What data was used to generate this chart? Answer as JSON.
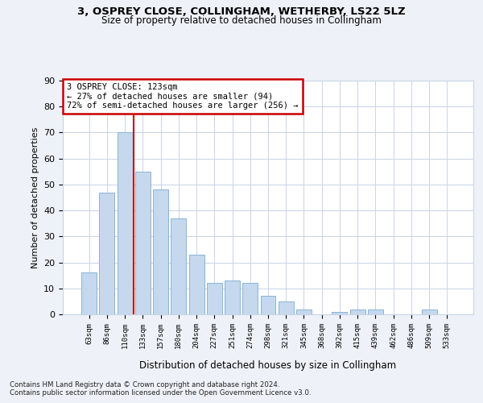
{
  "title1": "3, OSPREY CLOSE, COLLINGHAM, WETHERBY, LS22 5LZ",
  "title2": "Size of property relative to detached houses in Collingham",
  "xlabel": "Distribution of detached houses by size in Collingham",
  "ylabel": "Number of detached properties",
  "categories": [
    "63sqm",
    "86sqm",
    "110sqm",
    "133sqm",
    "157sqm",
    "180sqm",
    "204sqm",
    "227sqm",
    "251sqm",
    "274sqm",
    "298sqm",
    "321sqm",
    "345sqm",
    "368sqm",
    "392sqm",
    "415sqm",
    "439sqm",
    "462sqm",
    "486sqm",
    "509sqm",
    "533sqm"
  ],
  "values": [
    16,
    47,
    70,
    55,
    48,
    37,
    23,
    12,
    13,
    12,
    7,
    5,
    2,
    0,
    1,
    2,
    2,
    0,
    0,
    2,
    0
  ],
  "bar_color": "#c5d8ed",
  "bar_edgecolor": "#8ab4d4",
  "vline_x_index": 2.5,
  "vline_color": "#cc0000",
  "annotation_text": "3 OSPREY CLOSE: 123sqm\n← 27% of detached houses are smaller (94)\n72% of semi-detached houses are larger (256) →",
  "annotation_box_color": "#ffffff",
  "annotation_box_edgecolor": "#cc0000",
  "ylim": [
    0,
    90
  ],
  "yticks": [
    0,
    10,
    20,
    30,
    40,
    50,
    60,
    70,
    80,
    90
  ],
  "footer1": "Contains HM Land Registry data © Crown copyright and database right 2024.",
  "footer2": "Contains public sector information licensed under the Open Government Licence v3.0.",
  "bg_color": "#eef2f8",
  "plot_bg_color": "#ffffff",
  "grid_color": "#c8d4e8"
}
